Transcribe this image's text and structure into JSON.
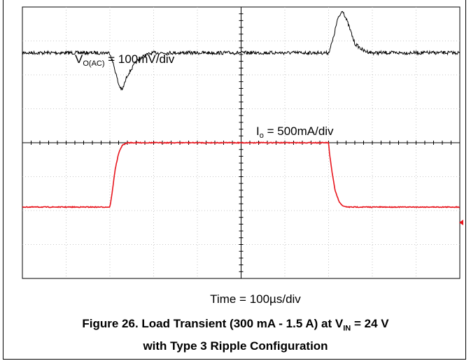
{
  "chart_data": {
    "type": "line",
    "title": "",
    "xlabel": "Time = 100µs/div",
    "ylabel": "",
    "grid": true,
    "x_divisions": 10,
    "y_divisions": 8,
    "x_unit": "µs",
    "x_per_div": 100,
    "xlim": [
      0,
      1000
    ],
    "series": [
      {
        "name": "",
        "channel": "VO(AC)",
        "scale_text": "100mV/div",
        "color": "#000000",
        "units": "mV",
        "x": [
          0,
          200,
          210,
          220,
          228,
          240,
          260,
          280,
          300,
          400,
          500,
          600,
          700,
          710,
          720,
          732,
          745,
          760,
          780,
          800,
          1000
        ],
        "y": [
          0,
          0,
          -70,
          -155,
          -185,
          -110,
          -45,
          -12,
          0,
          0,
          0,
          0,
          0,
          65,
          160,
          210,
          140,
          45,
          10,
          0,
          0
        ]
      },
      {
        "name": "",
        "channel": "Io",
        "scale_text": "500mA/div",
        "color": "#e8141c",
        "units": "A",
        "x": [
          0,
          200,
          205,
          212,
          220,
          228,
          240,
          260,
          300,
          400,
          500,
          600,
          700,
          702,
          708,
          715,
          725,
          735,
          745,
          1000
        ],
        "y": [
          0.3,
          0.3,
          0.55,
          1.0,
          1.3,
          1.45,
          1.5,
          1.5,
          1.5,
          1.5,
          1.5,
          1.5,
          1.5,
          1.3,
          0.95,
          0.6,
          0.38,
          0.31,
          0.3,
          0.3
        ]
      }
    ]
  },
  "labels": {
    "vo_main": "V",
    "vo_sub": "O(AC)",
    "vo_rest": " = 100mV/div",
    "io_main": "I",
    "io_sub": "o",
    "io_rest": " = 500mA/div",
    "time": "Time = 100µs/div"
  },
  "caption": {
    "line1_pre": "Figure 26. Load Transient (300 mA - 1.5 A) at V",
    "line1_sub": "IN",
    "line1_post": " = 24 V",
    "line2": "with Type 3 Ripple Configuration"
  }
}
